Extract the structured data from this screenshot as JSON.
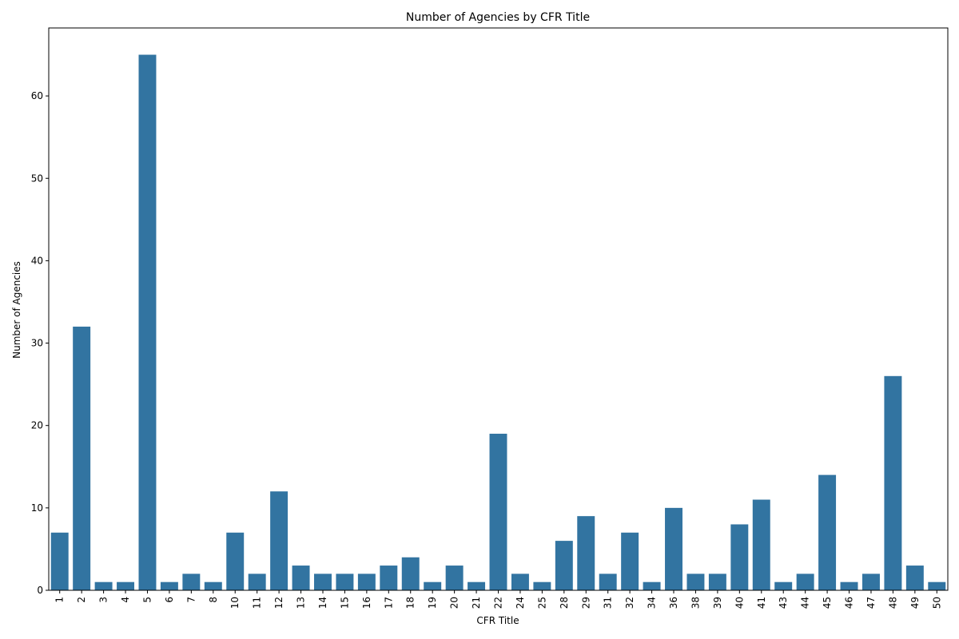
{
  "chart_data": {
    "type": "bar",
    "title": "Number of Agencies by CFR Title",
    "xlabel": "CFR Title",
    "ylabel": "Number of Agencies",
    "categories": [
      "1",
      "2",
      "3",
      "4",
      "5",
      "6",
      "7",
      "8",
      "10",
      "11",
      "12",
      "13",
      "14",
      "15",
      "16",
      "17",
      "18",
      "19",
      "20",
      "21",
      "22",
      "24",
      "25",
      "28",
      "29",
      "31",
      "32",
      "34",
      "36",
      "38",
      "39",
      "40",
      "41",
      "43",
      "44",
      "45",
      "46",
      "47",
      "48",
      "49",
      "50"
    ],
    "values": [
      7,
      32,
      1,
      1,
      65,
      1,
      2,
      1,
      7,
      2,
      12,
      3,
      2,
      2,
      2,
      3,
      4,
      1,
      3,
      1,
      19,
      2,
      1,
      6,
      9,
      2,
      7,
      1,
      10,
      2,
      2,
      8,
      11,
      1,
      2,
      14,
      1,
      2,
      26,
      3,
      1
    ],
    "ylim": [
      0,
      68.25
    ],
    "yticks": [
      0,
      10,
      20,
      30,
      40,
      50,
      60
    ],
    "bar_color": "#3274a1",
    "grid": false,
    "legend": "none"
  }
}
